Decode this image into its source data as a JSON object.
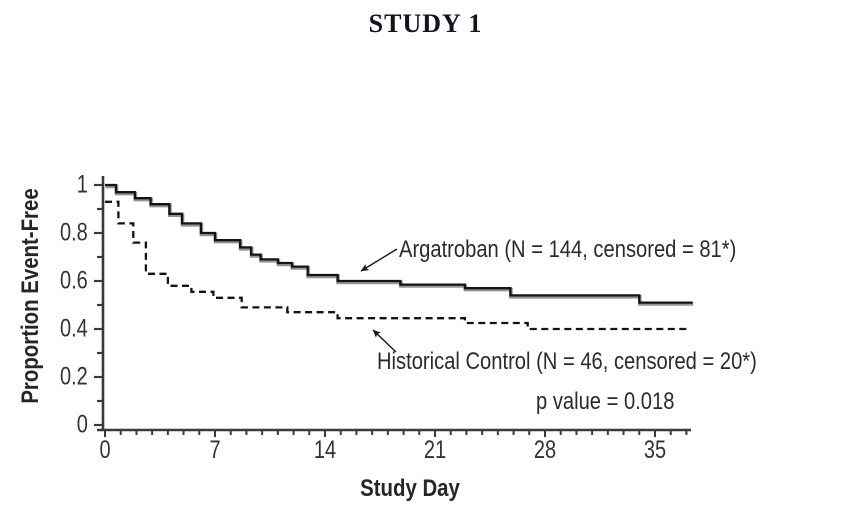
{
  "chart_data": {
    "type": "line",
    "subtype": "kaplan-meier-step",
    "title": "STUDY 1",
    "xlabel": "Study Day",
    "ylabel": "Proportion Event-Free",
    "xlim": [
      0,
      37.5
    ],
    "ylim": [
      0,
      1
    ],
    "xticks_major": [
      0,
      7,
      14,
      21,
      28,
      35
    ],
    "xtick_minor_interval_days": 1,
    "yticks_major": [
      0,
      0.2,
      0.4,
      0.6,
      0.8,
      1
    ],
    "ytick_minor_interval": 0.1,
    "grid": false,
    "legend_position": "inline-annotations",
    "p_value_label": "p value = 0.018",
    "axis_color": "#3a3a3a",
    "series": [
      {
        "name": "Argatroban",
        "label": "Argatroban (N = 144, censored = 81*)",
        "n": 144,
        "censored": 81,
        "line_style": "solid",
        "color": "#141414",
        "shadow_color": "#949494",
        "step_points": [
          [
            0,
            1.0
          ],
          [
            0.7,
            0.97
          ],
          [
            1.9,
            0.945
          ],
          [
            2.9,
            0.92
          ],
          [
            4.1,
            0.88
          ],
          [
            4.9,
            0.84
          ],
          [
            6.1,
            0.8
          ],
          [
            7.0,
            0.77
          ],
          [
            8.6,
            0.74
          ],
          [
            9.3,
            0.71
          ],
          [
            9.9,
            0.69
          ],
          [
            11.0,
            0.675
          ],
          [
            11.9,
            0.66
          ],
          [
            12.9,
            0.625
          ],
          [
            14.8,
            0.6
          ],
          [
            18.8,
            0.585
          ],
          [
            22.9,
            0.57
          ],
          [
            25.8,
            0.54
          ],
          [
            34.0,
            0.51
          ],
          [
            37.4,
            0.51
          ]
        ]
      },
      {
        "name": "Historical Control",
        "label": "Historical Control (N = 46, censored = 20*)",
        "n": 46,
        "censored": 20,
        "line_style": "dashed",
        "color": "#141414",
        "step_points": [
          [
            0,
            0.93
          ],
          [
            0.85,
            0.84
          ],
          [
            1.8,
            0.76
          ],
          [
            2.6,
            0.63
          ],
          [
            4.0,
            0.58
          ],
          [
            5.5,
            0.555
          ],
          [
            6.9,
            0.53
          ],
          [
            8.7,
            0.49
          ],
          [
            11.6,
            0.47
          ],
          [
            14.8,
            0.445
          ],
          [
            22.9,
            0.425
          ],
          [
            26.9,
            0.4
          ],
          [
            37.0,
            0.4
          ]
        ]
      }
    ]
  }
}
